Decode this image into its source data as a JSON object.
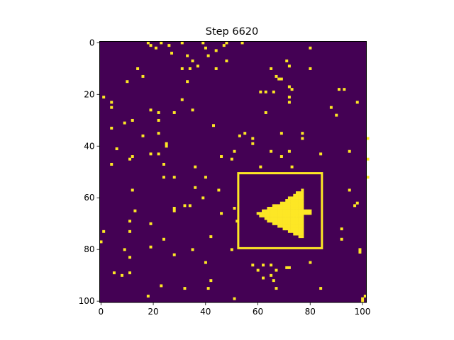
{
  "chart_data": {
    "type": "heatmap",
    "title": "Step 6620",
    "colors": {
      "background": "#440154",
      "live": "#fde725",
      "box": "#fde725"
    },
    "grid_size": [
      101,
      102
    ],
    "xlim": [
      0,
      102
    ],
    "ylim": [
      101,
      0
    ],
    "xticks": [
      0,
      20,
      40,
      60,
      80,
      100
    ],
    "yticks": [
      0,
      20,
      40,
      60,
      80,
      100
    ],
    "highlight_box": {
      "x0": 53,
      "y0": 51,
      "x1": 85,
      "y1": 80
    },
    "glider_cells": [
      [
        77,
        57
      ],
      [
        75,
        58
      ],
      [
        76,
        58
      ],
      [
        77,
        58
      ],
      [
        74,
        59
      ],
      [
        75,
        59
      ],
      [
        76,
        59
      ],
      [
        77,
        59
      ],
      [
        72,
        60
      ],
      [
        73,
        60
      ],
      [
        74,
        60
      ],
      [
        75,
        60
      ],
      [
        76,
        60
      ],
      [
        77,
        60
      ],
      [
        71,
        61
      ],
      [
        72,
        61
      ],
      [
        73,
        61
      ],
      [
        74,
        61
      ],
      [
        75,
        61
      ],
      [
        76,
        61
      ],
      [
        77,
        61
      ],
      [
        69,
        62
      ],
      [
        70,
        62
      ],
      [
        71,
        62
      ],
      [
        72,
        62
      ],
      [
        73,
        62
      ],
      [
        74,
        62
      ],
      [
        75,
        62
      ],
      [
        76,
        62
      ],
      [
        77,
        62
      ],
      [
        66,
        63
      ],
      [
        67,
        63
      ],
      [
        68,
        63
      ],
      [
        69,
        63
      ],
      [
        70,
        63
      ],
      [
        71,
        63
      ],
      [
        72,
        63
      ],
      [
        73,
        63
      ],
      [
        74,
        63
      ],
      [
        75,
        63
      ],
      [
        76,
        63
      ],
      [
        77,
        63
      ],
      [
        64,
        64
      ],
      [
        65,
        64
      ],
      [
        66,
        64
      ],
      [
        67,
        64
      ],
      [
        68,
        64
      ],
      [
        69,
        64
      ],
      [
        70,
        64
      ],
      [
        71,
        64
      ],
      [
        72,
        64
      ],
      [
        73,
        64
      ],
      [
        74,
        64
      ],
      [
        75,
        64
      ],
      [
        76,
        64
      ],
      [
        77,
        64
      ],
      [
        62,
        65
      ],
      [
        63,
        65
      ],
      [
        64,
        65
      ],
      [
        65,
        65
      ],
      [
        66,
        65
      ],
      [
        67,
        65
      ],
      [
        68,
        65
      ],
      [
        69,
        65
      ],
      [
        70,
        65
      ],
      [
        71,
        65
      ],
      [
        72,
        65
      ],
      [
        73,
        65
      ],
      [
        74,
        65
      ],
      [
        75,
        65
      ],
      [
        76,
        65
      ],
      [
        77,
        65
      ],
      [
        78,
        65
      ],
      [
        79,
        65
      ],
      [
        80,
        65
      ],
      [
        60,
        66
      ],
      [
        61,
        66
      ],
      [
        62,
        66
      ],
      [
        63,
        66
      ],
      [
        64,
        66
      ],
      [
        65,
        66
      ],
      [
        66,
        66
      ],
      [
        67,
        66
      ],
      [
        68,
        66
      ],
      [
        69,
        66
      ],
      [
        70,
        66
      ],
      [
        71,
        66
      ],
      [
        72,
        66
      ],
      [
        73,
        66
      ],
      [
        74,
        66
      ],
      [
        75,
        66
      ],
      [
        76,
        66
      ],
      [
        77,
        66
      ],
      [
        78,
        66
      ],
      [
        79,
        66
      ],
      [
        80,
        66
      ],
      [
        61,
        67
      ],
      [
        62,
        67
      ],
      [
        63,
        67
      ],
      [
        64,
        67
      ],
      [
        65,
        67
      ],
      [
        66,
        67
      ],
      [
        67,
        67
      ],
      [
        68,
        67
      ],
      [
        69,
        67
      ],
      [
        70,
        67
      ],
      [
        71,
        67
      ],
      [
        72,
        67
      ],
      [
        73,
        67
      ],
      [
        74,
        67
      ],
      [
        75,
        67
      ],
      [
        76,
        67
      ],
      [
        77,
        67
      ],
      [
        63,
        68
      ],
      [
        64,
        68
      ],
      [
        65,
        68
      ],
      [
        66,
        68
      ],
      [
        67,
        68
      ],
      [
        68,
        68
      ],
      [
        69,
        68
      ],
      [
        70,
        68
      ],
      [
        71,
        68
      ],
      [
        72,
        68
      ],
      [
        73,
        68
      ],
      [
        74,
        68
      ],
      [
        75,
        68
      ],
      [
        76,
        68
      ],
      [
        77,
        68
      ],
      [
        64,
        69
      ],
      [
        65,
        69
      ],
      [
        66,
        69
      ],
      [
        67,
        69
      ],
      [
        68,
        69
      ],
      [
        69,
        69
      ],
      [
        70,
        69
      ],
      [
        71,
        69
      ],
      [
        72,
        69
      ],
      [
        73,
        69
      ],
      [
        74,
        69
      ],
      [
        75,
        69
      ],
      [
        76,
        69
      ],
      [
        77,
        69
      ],
      [
        66,
        70
      ],
      [
        67,
        70
      ],
      [
        68,
        70
      ],
      [
        69,
        70
      ],
      [
        70,
        70
      ],
      [
        71,
        70
      ],
      [
        72,
        70
      ],
      [
        73,
        70
      ],
      [
        74,
        70
      ],
      [
        75,
        70
      ],
      [
        76,
        70
      ],
      [
        77,
        70
      ],
      [
        68,
        71
      ],
      [
        69,
        71
      ],
      [
        70,
        71
      ],
      [
        71,
        71
      ],
      [
        72,
        71
      ],
      [
        73,
        71
      ],
      [
        74,
        71
      ],
      [
        75,
        71
      ],
      [
        76,
        71
      ],
      [
        77,
        71
      ],
      [
        70,
        72
      ],
      [
        71,
        72
      ],
      [
        72,
        72
      ],
      [
        73,
        72
      ],
      [
        74,
        72
      ],
      [
        75,
        72
      ],
      [
        76,
        72
      ],
      [
        77,
        72
      ],
      [
        72,
        73
      ],
      [
        73,
        73
      ],
      [
        74,
        73
      ],
      [
        75,
        73
      ],
      [
        76,
        73
      ],
      [
        77,
        73
      ],
      [
        74,
        74
      ],
      [
        75,
        74
      ],
      [
        76,
        74
      ],
      [
        77,
        74
      ],
      [
        76,
        75
      ],
      [
        77,
        75
      ]
    ],
    "scattered_cells": [
      [
        18,
        0
      ],
      [
        19,
        1
      ],
      [
        23,
        0
      ],
      [
        26,
        1
      ],
      [
        21,
        2
      ],
      [
        31,
        0
      ],
      [
        39,
        0
      ],
      [
        48,
        0
      ],
      [
        54,
        0
      ],
      [
        40,
        2
      ],
      [
        47,
        1
      ],
      [
        27,
        4
      ],
      [
        44,
        3
      ],
      [
        33,
        5
      ],
      [
        41,
        5
      ],
      [
        35,
        7
      ],
      [
        31,
        10
      ],
      [
        37,
        9
      ],
      [
        48,
        7
      ],
      [
        80,
        2
      ],
      [
        71,
        7
      ],
      [
        72,
        9
      ],
      [
        65,
        10
      ],
      [
        80,
        10
      ],
      [
        14,
        10
      ],
      [
        16,
        13
      ],
      [
        34,
        10
      ],
      [
        44,
        10
      ],
      [
        67,
        13
      ],
      [
        68,
        14
      ],
      [
        69,
        14
      ],
      [
        10,
        15
      ],
      [
        33,
        15
      ],
      [
        72,
        17
      ],
      [
        73,
        18
      ],
      [
        61,
        19
      ],
      [
        63,
        19
      ],
      [
        66,
        19
      ],
      [
        91,
        18
      ],
      [
        93,
        18
      ],
      [
        98,
        23
      ],
      [
        88,
        25
      ],
      [
        90,
        28
      ],
      [
        72,
        21
      ],
      [
        72,
        23
      ],
      [
        31,
        22
      ],
      [
        1,
        21
      ],
      [
        4,
        23
      ],
      [
        4,
        25
      ],
      [
        19,
        26
      ],
      [
        22,
        27
      ],
      [
        28,
        27
      ],
      [
        35,
        26
      ],
      [
        63,
        27
      ],
      [
        9,
        31
      ],
      [
        12,
        30
      ],
      [
        22,
        30
      ],
      [
        4,
        33
      ],
      [
        43,
        32
      ],
      [
        16,
        36
      ],
      [
        22,
        35
      ],
      [
        53,
        36
      ],
      [
        55,
        35
      ],
      [
        58,
        37
      ],
      [
        69,
        35
      ],
      [
        77,
        35
      ],
      [
        77,
        37
      ],
      [
        58,
        39
      ],
      [
        102,
        37
      ],
      [
        25,
        39
      ],
      [
        25,
        40
      ],
      [
        6,
        41
      ],
      [
        19,
        43
      ],
      [
        22,
        43
      ],
      [
        51,
        42
      ],
      [
        65,
        42
      ],
      [
        72,
        42
      ],
      [
        84,
        43
      ],
      [
        95,
        42
      ],
      [
        12,
        44
      ],
      [
        11,
        45
      ],
      [
        46,
        44
      ],
      [
        50,
        45
      ],
      [
        69,
        44
      ],
      [
        102,
        45
      ],
      [
        4,
        47
      ],
      [
        24,
        47
      ],
      [
        36,
        48
      ],
      [
        61,
        48
      ],
      [
        73,
        48
      ],
      [
        24,
        52
      ],
      [
        28,
        52
      ],
      [
        40,
        52
      ],
      [
        102,
        52
      ],
      [
        12,
        57
      ],
      [
        36,
        56
      ],
      [
        45,
        57
      ],
      [
        95,
        57
      ],
      [
        39,
        60
      ],
      [
        34,
        63
      ],
      [
        32,
        63
      ],
      [
        28,
        64
      ],
      [
        28,
        65
      ],
      [
        51,
        64
      ],
      [
        97,
        63
      ],
      [
        98,
        62
      ],
      [
        13,
        65
      ],
      [
        46,
        66
      ],
      [
        52,
        69
      ],
      [
        11,
        69
      ],
      [
        11,
        73
      ],
      [
        19,
        70
      ],
      [
        1,
        73
      ],
      [
        92,
        72
      ],
      [
        0,
        77
      ],
      [
        24,
        76
      ],
      [
        42,
        75
      ],
      [
        92,
        76
      ],
      [
        9,
        80
      ],
      [
        19,
        79
      ],
      [
        35,
        80
      ],
      [
        50,
        80
      ],
      [
        99,
        80
      ],
      [
        99,
        81
      ],
      [
        11,
        83
      ],
      [
        28,
        82
      ],
      [
        40,
        85
      ],
      [
        80,
        85
      ],
      [
        58,
        86
      ],
      [
        62,
        86
      ],
      [
        65,
        86
      ],
      [
        67,
        88
      ],
      [
        60,
        88
      ],
      [
        71,
        87
      ],
      [
        72,
        87
      ],
      [
        65,
        90
      ],
      [
        5,
        89
      ],
      [
        8,
        90
      ],
      [
        11,
        89
      ],
      [
        42,
        92
      ],
      [
        62,
        91
      ],
      [
        66,
        92
      ],
      [
        23,
        94
      ],
      [
        32,
        95
      ],
      [
        41,
        95
      ],
      [
        67,
        95
      ],
      [
        84,
        95
      ],
      [
        18,
        98
      ],
      [
        51,
        99
      ],
      [
        101,
        98
      ],
      [
        100,
        99
      ],
      [
        100,
        100
      ]
    ]
  }
}
